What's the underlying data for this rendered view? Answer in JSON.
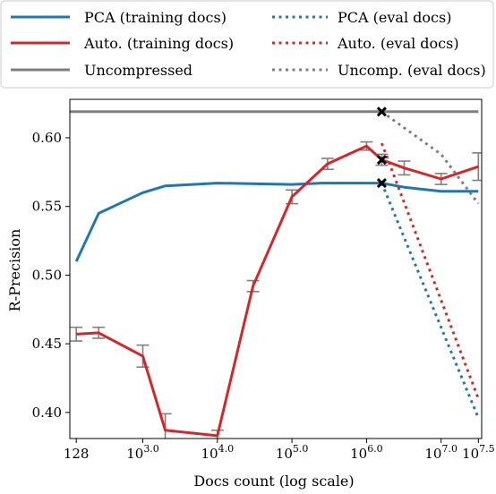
{
  "chart_data": {
    "type": "line",
    "xlabel": "Docs count (log scale)",
    "ylabel": "R-Precision",
    "xscale": "log",
    "xlim": [
      105,
      35000000
    ],
    "ylim": [
      0.381,
      0.628
    ],
    "x_ticks": [
      {
        "value": 128,
        "base": "128",
        "exp": ""
      },
      {
        "value": 1000,
        "base": "10",
        "exp": "3.0"
      },
      {
        "value": 10000,
        "base": "10",
        "exp": "4.0"
      },
      {
        "value": 100000,
        "base": "10",
        "exp": "5.0"
      },
      {
        "value": 1000000,
        "base": "10",
        "exp": "6.0"
      },
      {
        "value": 10000000,
        "base": "10",
        "exp": "7.0"
      },
      {
        "value": 31622777,
        "base": "10",
        "exp": "7.5"
      }
    ],
    "y_ticks": [
      {
        "value": 0.4,
        "label": "0.40"
      },
      {
        "value": 0.45,
        "label": "0.45"
      },
      {
        "value": 0.5,
        "label": "0.50"
      },
      {
        "value": 0.55,
        "label": "0.55"
      },
      {
        "value": 0.6,
        "label": "0.60"
      }
    ],
    "grid": false,
    "legend": {
      "placement": "top",
      "entries": [
        {
          "label": "PCA (training docs)",
          "color": "#1f77b4",
          "style": "solid"
        },
        {
          "label": "PCA (eval docs)",
          "color": "#1f77b4",
          "style": "dotted"
        },
        {
          "label": "Auto. (training docs)",
          "color": "#d62728",
          "style": "solid"
        },
        {
          "label": "Auto. (eval docs)",
          "color": "#d62728",
          "style": "dotted"
        },
        {
          "label": "Uncompressed",
          "color": "#7f7f7f",
          "style": "solid"
        },
        {
          "label": "Uncomp. (eval docs)",
          "color": "#7f7f7f",
          "style": "dotted"
        }
      ]
    },
    "series": [
      {
        "name": "PCA (training docs)",
        "color": "#1f77b4",
        "style": "solid",
        "x": [
          128,
          256,
          1000,
          2000,
          10000,
          100000,
          250000,
          1000000,
          1600000,
          3200000,
          10000000,
          31622777
        ],
        "y": [
          0.51,
          0.545,
          0.56,
          0.565,
          0.567,
          0.566,
          0.567,
          0.567,
          0.567,
          0.564,
          0.561,
          0.561
        ]
      },
      {
        "name": "Auto. (training docs)",
        "color": "#d62728",
        "style": "solid",
        "x": [
          128,
          256,
          1000,
          2000,
          10000,
          30000,
          100000,
          300000,
          1000000,
          1600000,
          3200000,
          10000000,
          31622777
        ],
        "y": [
          0.457,
          0.458,
          0.441,
          0.387,
          0.383,
          0.492,
          0.557,
          0.581,
          0.594,
          0.584,
          0.578,
          0.57,
          0.579
        ],
        "err": [
          0.005,
          0.004,
          0.008,
          0.012,
          0.004,
          0.004,
          0.005,
          0.004,
          0.003,
          0.004,
          0.005,
          0.004,
          0.01
        ]
      },
      {
        "name": "Uncompressed",
        "color": "#7f7f7f",
        "style": "solid",
        "x": [
          105,
          31622777
        ],
        "y": [
          0.619,
          0.619
        ]
      },
      {
        "name": "PCA (eval docs)",
        "color": "#1f77b4",
        "style": "dotted",
        "x": [
          1600000,
          31622777
        ],
        "y": [
          0.567,
          0.396
        ]
      },
      {
        "name": "Auto. (eval docs)",
        "color": "#d62728",
        "style": "dotted",
        "x": [
          1600000,
          31622777
        ],
        "y": [
          0.596,
          0.41
        ]
      },
      {
        "name": "Uncomp. (eval docs)",
        "color": "#7f7f7f",
        "style": "dotted",
        "x": [
          1600000,
          10000000,
          31622777
        ],
        "y": [
          0.619,
          0.588,
          0.552
        ]
      }
    ],
    "markers": {
      "symbol": "x",
      "color": "#000000",
      "points": [
        {
          "x": 1600000,
          "y": 0.619
        },
        {
          "x": 1600000,
          "y": 0.584
        },
        {
          "x": 1600000,
          "y": 0.567
        }
      ]
    }
  }
}
